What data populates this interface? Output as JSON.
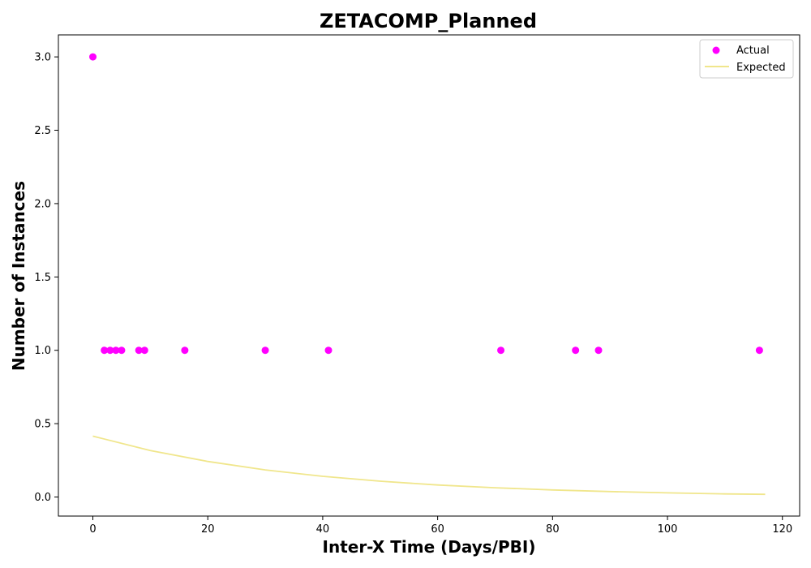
{
  "chart_data": {
    "type": "scatter",
    "title": "ZETACOMP_Planned",
    "xlabel": "Inter-X Time (Days/PBI)",
    "ylabel": "Number of Instances",
    "xlim": [
      -6,
      123
    ],
    "ylim": [
      -0.13,
      3.15
    ],
    "xticks": [
      0,
      20,
      40,
      60,
      80,
      100,
      120
    ],
    "yticks": [
      0.0,
      0.5,
      1.0,
      1.5,
      2.0,
      2.5,
      3.0
    ],
    "xtick_labels": [
      "0",
      "20",
      "40",
      "60",
      "80",
      "100",
      "120"
    ],
    "ytick_labels": [
      "0.0",
      "0.5",
      "1.0",
      "1.5",
      "2.0",
      "2.5",
      "3.0"
    ],
    "grid": false,
    "legend_position": "top-right",
    "series": [
      {
        "name": "Actual",
        "kind": "scatter",
        "color": "#ff00ff",
        "x": [
          0,
          2,
          3,
          4,
          5,
          8,
          9,
          16,
          30,
          41,
          71,
          84,
          88,
          116
        ],
        "y": [
          3,
          1,
          1,
          1,
          1,
          1,
          1,
          1,
          1,
          1,
          1,
          1,
          1,
          1
        ]
      },
      {
        "name": "Expected",
        "kind": "line",
        "color": "#f0e68c",
        "x": [
          0,
          10,
          20,
          30,
          40,
          50,
          60,
          70,
          80,
          90,
          100,
          110,
          117
        ],
        "y": [
          0.415,
          0.317,
          0.242,
          0.185,
          0.141,
          0.108,
          0.082,
          0.063,
          0.048,
          0.037,
          0.028,
          0.021,
          0.018
        ]
      }
    ]
  }
}
